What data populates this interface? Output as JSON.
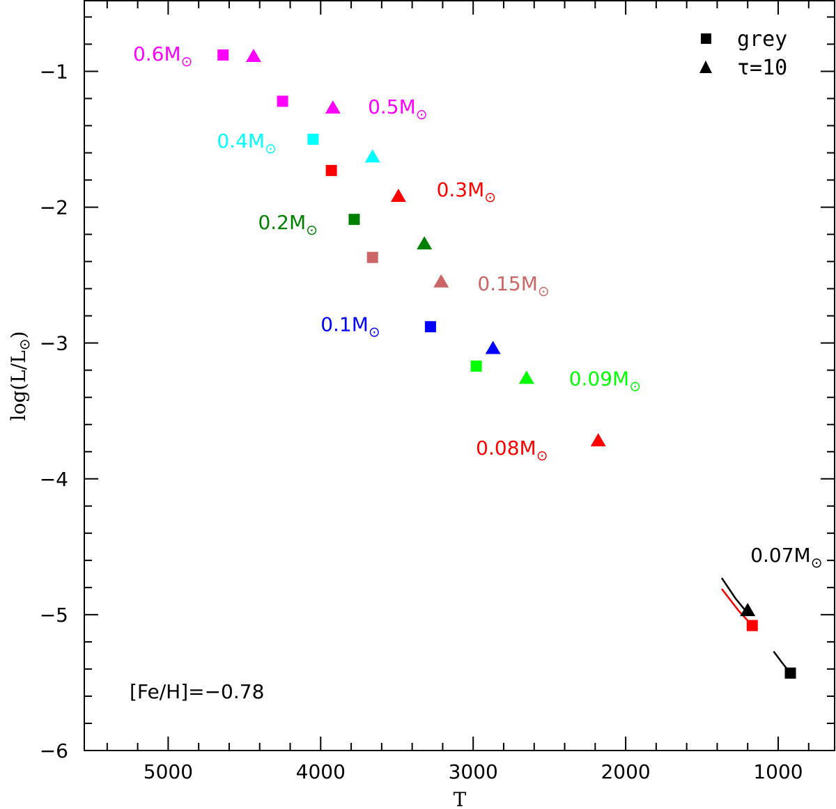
{
  "chart_data": {
    "type": "scatter",
    "xlabel": "T",
    "ylabel": "log(L/L",
    "ylabel_symbol": "⊙",
    "ylabel_suffix": ")",
    "xlim": [
      5550,
      630
    ],
    "ylim": [
      -6,
      -0.48
    ],
    "x_ticks": [
      5000,
      4000,
      3000,
      2000,
      1000
    ],
    "y_ticks": [
      -1,
      -2,
      -3,
      -4,
      -5,
      -6
    ],
    "legend": {
      "position": "top-right",
      "entries": [
        {
          "marker": "square",
          "label": "grey"
        },
        {
          "marker": "triangle",
          "label": "τ=10"
        }
      ]
    },
    "annotation": "[Fe/H]=−0.78",
    "sun_symbol": "⊙",
    "series": [
      {
        "name": "0.6M",
        "color": "#ff00ff",
        "grey": [
          4640,
          -0.88
        ],
        "tau10": [
          4440,
          -0.89
        ],
        "label_pos": [
          4840,
          -0.88
        ]
      },
      {
        "name": "0.5M",
        "color": "#ff00ff",
        "grey": [
          4250,
          -1.22
        ],
        "tau10": [
          3920,
          -1.27
        ],
        "label_pos": [
          3300,
          -1.27
        ]
      },
      {
        "name": "0.4M",
        "color": "#00ffff",
        "grey": [
          4050,
          -1.5
        ],
        "tau10": [
          3660,
          -1.63
        ],
        "label_pos": [
          4290,
          -1.52
        ]
      },
      {
        "name": "0.3M",
        "color": "#ff0000",
        "grey": [
          3930,
          -1.73
        ],
        "tau10": [
          3490,
          -1.92
        ],
        "label_pos": [
          2850,
          -1.88
        ]
      },
      {
        "name": "0.2M",
        "color": "#008000",
        "grey": [
          3780,
          -2.09
        ],
        "tau10": [
          3320,
          -2.27
        ],
        "label_pos": [
          4020,
          -2.12
        ]
      },
      {
        "name": "0.15M",
        "color": "#cc6666",
        "grey": [
          3660,
          -2.37
        ],
        "tau10": [
          3210,
          -2.55
        ],
        "label_pos": [
          2500,
          -2.57
        ]
      },
      {
        "name": "0.1M",
        "color": "#0000ff",
        "grey": [
          3280,
          -2.88
        ],
        "tau10": [
          2870,
          -3.04
        ],
        "label_pos": [
          3610,
          -2.87
        ]
      },
      {
        "name": "0.09M",
        "color": "#00ff00",
        "grey": [
          2980,
          -3.17
        ],
        "tau10": [
          2650,
          -3.26
        ],
        "label_pos": [
          1900,
          -3.27
        ]
      },
      {
        "name": "0.08M",
        "color": "#ff0000",
        "grey": null,
        "tau10": [
          2180,
          -3.72
        ],
        "label_pos": [
          2510,
          -3.78
        ]
      },
      {
        "name": "0.07M",
        "color": "#000000",
        "grey": [
          920,
          -5.43
        ],
        "tau10": [
          1200,
          -4.97
        ],
        "label_pos": [
          710,
          -4.57
        ]
      },
      {
        "name": "0.07M-red",
        "color": "#ff0000",
        "grey": [
          1170,
          -5.08
        ],
        "tau10": null,
        "label_pos": null
      }
    ],
    "tracks": [
      {
        "color": "#000000",
        "points": [
          [
            1370,
            -4.73
          ],
          [
            1280,
            -4.88
          ],
          [
            1200,
            -4.99
          ]
        ]
      },
      {
        "color": "#ff0000",
        "points": [
          [
            1370,
            -4.81
          ],
          [
            1260,
            -4.97
          ],
          [
            1170,
            -5.08
          ]
        ]
      },
      {
        "color": "#000000",
        "points": [
          [
            1030,
            -5.27
          ],
          [
            970,
            -5.36
          ],
          [
            920,
            -5.43
          ]
        ]
      }
    ]
  }
}
